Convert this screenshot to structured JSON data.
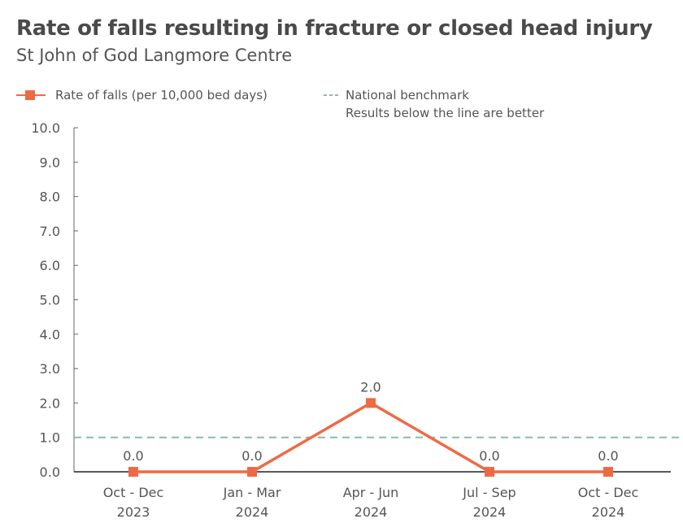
{
  "title": "Rate of falls resulting in fracture or closed head injury",
  "subtitle": "St John of God Langmore Centre",
  "colors": {
    "series": "#ee6a45",
    "benchmark": "#8dbba5",
    "axis": "#666666"
  },
  "legend": {
    "series_label": "Rate of falls (per 10,000 bed days)",
    "benchmark_label": "National benchmark",
    "benchmark_note": "Results below the line are better"
  },
  "chart_data": {
    "type": "line",
    "title": "Rate of falls resulting in fracture or closed head injury",
    "subtitle": "St John of God Langmore Centre",
    "categories": [
      [
        "Oct - Dec",
        "2023"
      ],
      [
        "Jan - Mar",
        "2024"
      ],
      [
        "Apr - Jun",
        "2024"
      ],
      [
        "Jul - Sep",
        "2024"
      ],
      [
        "Oct - Dec",
        "2024"
      ]
    ],
    "series": [
      {
        "name": "Rate of falls (per 10,000 bed days)",
        "values": [
          0.0,
          0.0,
          2.0,
          0.0,
          0.0
        ]
      }
    ],
    "data_labels": [
      "0.0",
      "0.0",
      "2.0",
      "0.0",
      "0.0"
    ],
    "benchmark": {
      "name": "National benchmark",
      "value": 1.0
    },
    "ylim": [
      0,
      10
    ],
    "yticks": [
      "0.0",
      "1.0",
      "2.0",
      "3.0",
      "4.0",
      "5.0",
      "6.0",
      "7.0",
      "8.0",
      "9.0",
      "10.0"
    ],
    "legend_position": "top-left"
  }
}
